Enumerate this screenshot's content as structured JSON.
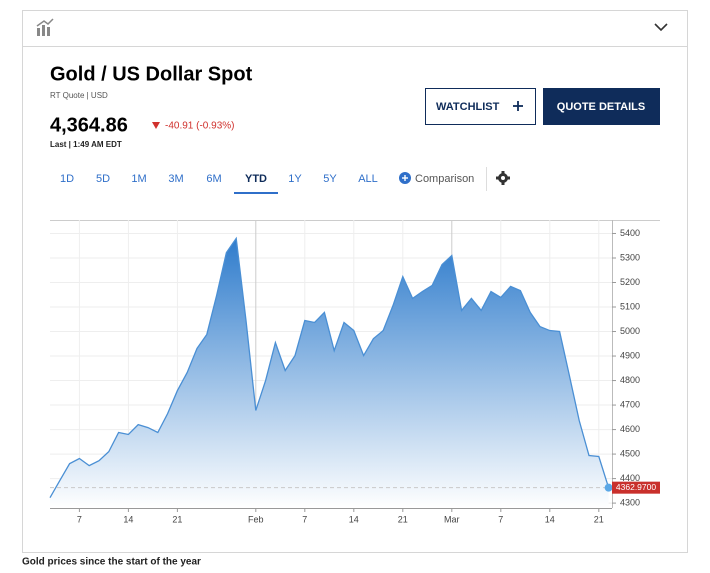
{
  "header": {
    "title": "Gold / US Dollar Spot",
    "subtitle": "RT Quote | USD",
    "price": "4,364.86",
    "change": "-40.91 (-0.93%)",
    "time": "Last | 1:49 AM EDT"
  },
  "buttons": {
    "watchlist": "WATCHLIST",
    "quote_details": "QUOTE DETAILS"
  },
  "ranges": [
    "1D",
    "5D",
    "1M",
    "3M",
    "6M",
    "YTD",
    "1Y",
    "5Y",
    "ALL"
  ],
  "active_range": "YTD",
  "comparison": "Comparison",
  "caption": "Gold prices since the start of the year",
  "chart_data": {
    "type": "area",
    "color": "#4a8fd4",
    "categories": [
      null,
      null,
      null,
      "7",
      null,
      null,
      null,
      null,
      "14",
      null,
      null,
      null,
      null,
      "21",
      null,
      null,
      null,
      null,
      null,
      null,
      null,
      "Feb",
      null,
      null,
      null,
      null,
      "7",
      null,
      null,
      null,
      null,
      "14",
      null,
      null,
      null,
      null,
      "21",
      null,
      null,
      null,
      null,
      "Mar",
      null,
      null,
      null,
      null,
      "7",
      null,
      null,
      null,
      null,
      "14",
      null,
      null,
      null,
      null,
      "21",
      null
    ],
    "values": [
      4322,
      4392,
      4461,
      4482,
      4453,
      4473,
      4510,
      4588,
      4580,
      4620,
      4608,
      4588,
      4665,
      4759,
      4833,
      4931,
      4988,
      5147,
      5322,
      5380,
      5045,
      4678,
      4800,
      4955,
      4841,
      4902,
      5045,
      5037,
      5078,
      4922,
      5037,
      5004,
      4902,
      4971,
      5004,
      5106,
      5224,
      5135,
      5163,
      5188,
      5273,
      5310,
      5086,
      5135,
      5086,
      5163,
      5139,
      5184,
      5167,
      5078,
      5020,
      5004,
      5000,
      4820,
      4637,
      4494,
      4490,
      4362.97
    ],
    "value_labels": [
      null,
      null,
      null,
      null,
      null,
      null,
      null,
      null,
      null,
      null,
      null,
      null,
      null,
      null,
      null,
      null,
      null,
      null,
      null,
      null,
      null,
      null,
      null,
      null,
      null,
      null,
      null,
      null,
      null,
      null,
      null,
      null,
      null,
      null,
      null,
      null,
      null,
      null,
      null,
      null,
      null,
      null,
      null,
      null,
      null,
      null,
      null,
      null,
      null,
      null,
      null,
      null,
      null,
      null,
      null,
      null,
      null,
      "4362.9700"
    ],
    "ylim": [
      4280,
      5455
    ],
    "yticks": [
      4300,
      4400,
      4500,
      4600,
      4700,
      4800,
      4900,
      5000,
      5100,
      5200,
      5300,
      5400
    ],
    "grid": true
  }
}
